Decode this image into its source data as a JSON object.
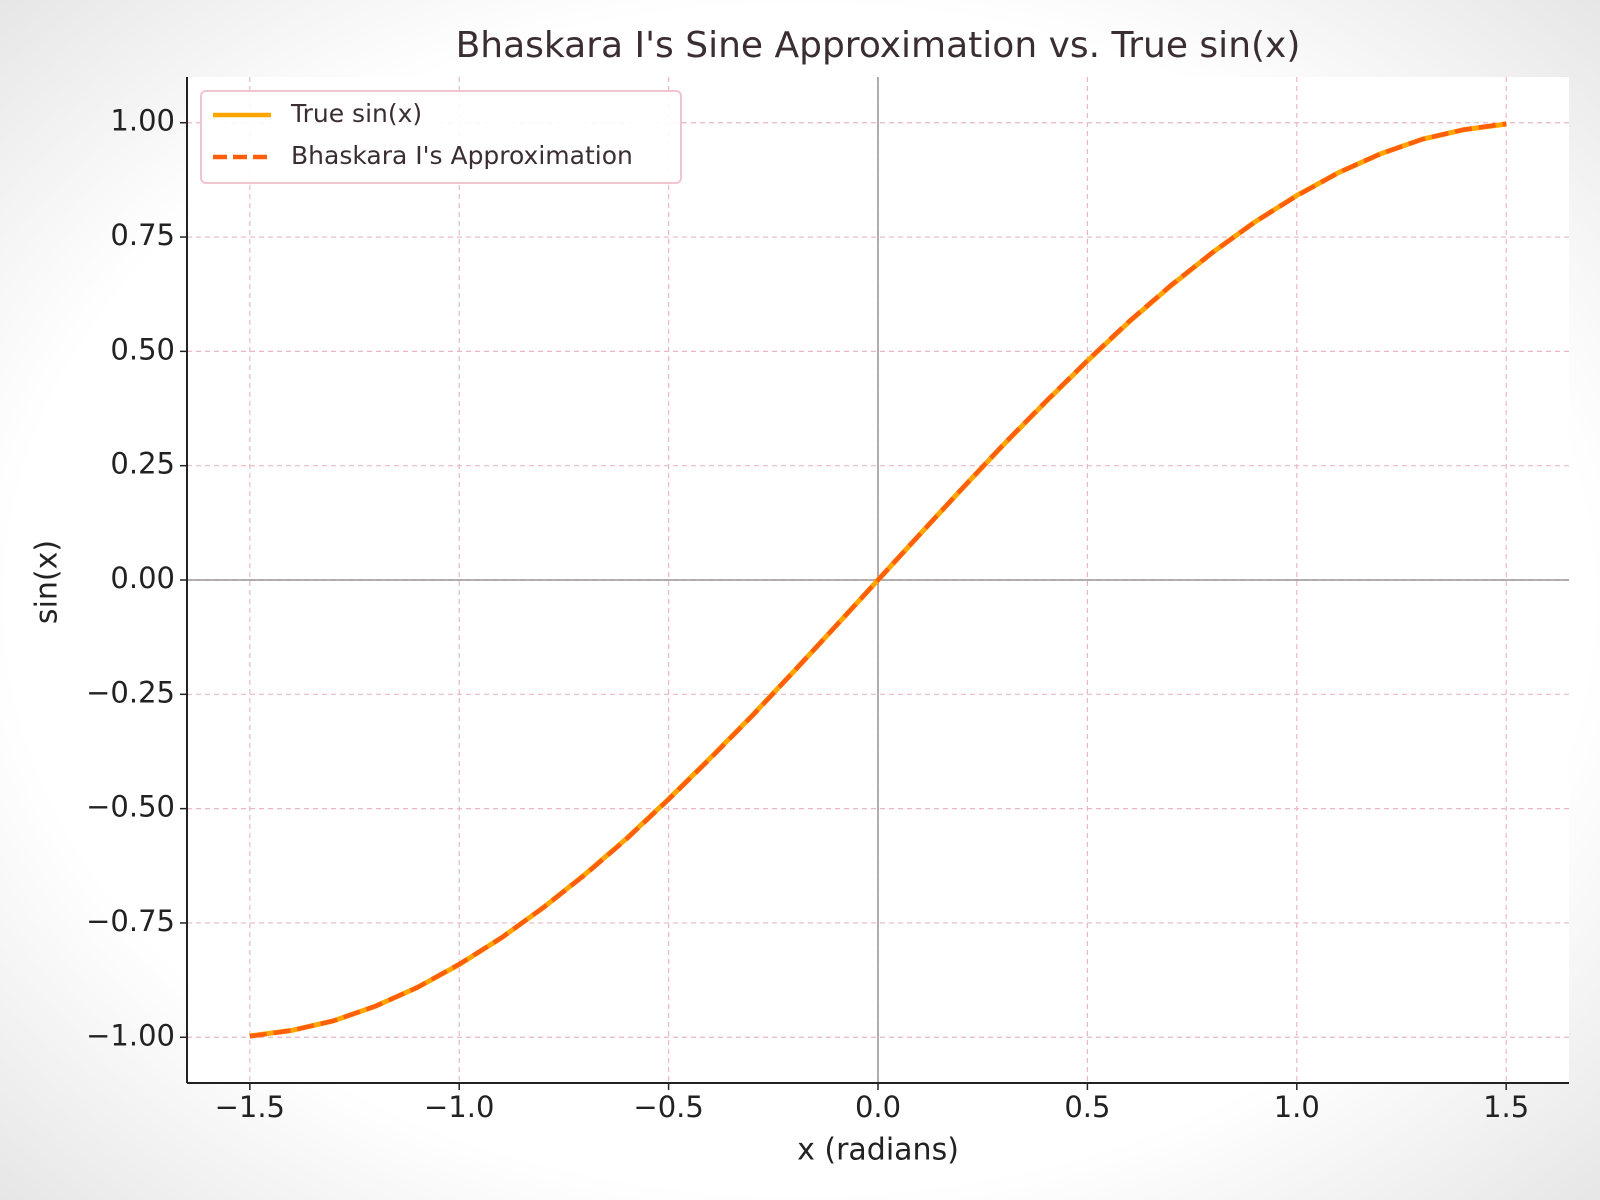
{
  "chart_data": {
    "type": "line",
    "title": "Bhaskara I's Sine Approximation vs. True sin(x)",
    "x_label": "x (radians)",
    "y_label": "sin(x)",
    "x": [
      -1.5,
      -1.4,
      -1.3,
      -1.2,
      -1.1,
      -1.0,
      -0.9,
      -0.8,
      -0.7,
      -0.6,
      -0.5,
      -0.4,
      -0.3,
      -0.2,
      -0.1,
      0,
      0.1,
      0.2,
      0.3,
      0.4,
      0.5,
      0.6,
      0.7,
      0.8,
      0.9,
      1.0,
      1.1,
      1.2,
      1.3,
      1.4,
      1.5
    ],
    "series": [
      {
        "name": "True sin(x)",
        "color": "#ffa500",
        "dash": false,
        "values": [
          -0.997,
          -0.985,
          -0.964,
          -0.932,
          -0.891,
          -0.841,
          -0.783,
          -0.717,
          -0.644,
          -0.565,
          -0.479,
          -0.389,
          -0.296,
          -0.199,
          -0.1,
          0,
          0.1,
          0.199,
          0.296,
          0.389,
          0.479,
          0.565,
          0.644,
          0.717,
          0.783,
          0.841,
          0.891,
          0.932,
          0.964,
          0.985,
          0.997
        ]
      },
      {
        "name": "Bhaskara I's Approximation",
        "color": "#ff5f0a",
        "dash": true,
        "values": [
          -0.998,
          -0.985,
          -0.964,
          -0.932,
          -0.891,
          -0.84,
          -0.783,
          -0.717,
          -0.645,
          -0.566,
          -0.48,
          -0.39,
          -0.297,
          -0.199,
          -0.1,
          0,
          0.1,
          0.199,
          0.297,
          0.39,
          0.48,
          0.566,
          0.645,
          0.717,
          0.783,
          0.84,
          0.891,
          0.932,
          0.964,
          0.985,
          0.998
        ]
      }
    ],
    "xlim": [
      -1.65,
      1.65
    ],
    "ylim": [
      -1.1,
      1.1
    ],
    "xticks": [
      {
        "value": -1.5,
        "label": "−1.5"
      },
      {
        "value": -1,
        "label": "−1.0"
      },
      {
        "value": -0.5,
        "label": "−0.5"
      },
      {
        "value": 0,
        "label": "0.0"
      },
      0.5,
      {
        "value": 1,
        "label": "1.0"
      },
      1.5
    ],
    "yticks": [
      {
        "value": -1,
        "label": "−1.00"
      },
      {
        "value": -0.75,
        "label": "−0.75"
      },
      {
        "value": -0.5,
        "label": "−0.50"
      },
      {
        "value": -0.25,
        "label": "−0.25"
      },
      {
        "value": 0,
        "label": "0.00"
      },
      0.25,
      {
        "value": 0.5,
        "label": "0.50"
      },
      0.75,
      {
        "value": 1,
        "label": "1.00"
      }
    ],
    "grid": true,
    "zero_lines": true,
    "legend": "upper left"
  }
}
